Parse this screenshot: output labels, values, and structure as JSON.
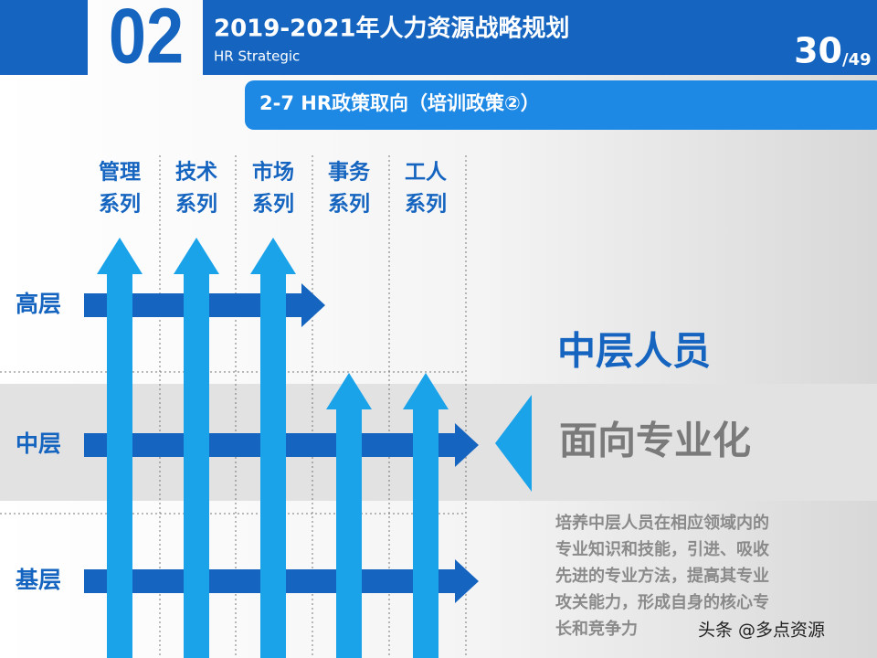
{
  "header": {
    "number": "02",
    "title": "2019-2021年人力资源战略规划",
    "subtitle": "HR Strategic",
    "page": "30",
    "total": "/49"
  },
  "section": "2-7  HR政策取向（培训政策②）",
  "columns": [
    [
      "管理",
      "系列"
    ],
    [
      "技术",
      "系列"
    ],
    [
      "市场",
      "系列"
    ],
    [
      "事务",
      "系列"
    ],
    [
      "工人",
      "系列"
    ]
  ],
  "rows": [
    "高层",
    "中层",
    "基层"
  ],
  "highlight": {
    "title": "中层人员",
    "subtitle": "面向专业化",
    "description": [
      "培养中层人员在相应领域内的",
      "专业知识和技能，引进、吸收",
      "先进的专业方法，提高其专业",
      "攻关能力，形成自身的核心专",
      "长和竞争力"
    ]
  },
  "watermark": "头条 @多点资源"
}
